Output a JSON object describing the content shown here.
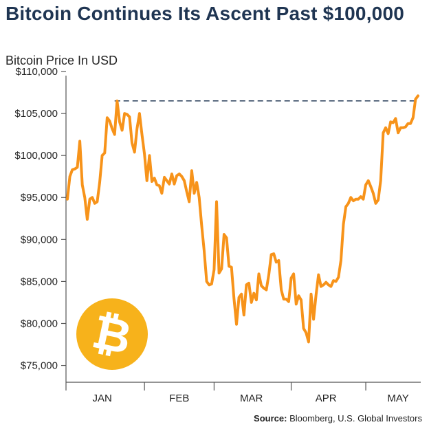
{
  "title": "Bitcoin Continues Its Ascent Past $100,000",
  "subtitle": "Bitcoin Price In USD",
  "source": {
    "label": "Source:",
    "text": "Bloomberg, U.S. Global Investors"
  },
  "logo": {
    "icon": "bitcoin-icon",
    "glyph": "₿",
    "color": "#f7b21b"
  },
  "colors": {
    "line": "#f7931a",
    "reference_line": "#1f3552",
    "axis": "#555555"
  },
  "chart_data": {
    "type": "line",
    "title": "Bitcoin Continues Its Ascent Past $100,000",
    "subtitle": "Bitcoin Price In USD",
    "xlabel": "",
    "ylabel": "",
    "x_tick_labels": [
      "JAN",
      "FEB",
      "MAR",
      "APR",
      "MAY"
    ],
    "y_tick_labels": [
      "$75,000",
      "$80,000",
      "$85,000",
      "$90,000",
      "$95,000",
      "$100,000",
      "$105,000",
      "$110,000"
    ],
    "y_ticks": [
      75000,
      80000,
      85000,
      90000,
      95000,
      100000,
      105000,
      110000
    ],
    "ylim": [
      73000,
      110000
    ],
    "x_range": [
      "2025-01-01",
      "2025-05-22"
    ],
    "grid": false,
    "legend": "none",
    "reference_line": {
      "y": 106500,
      "style": "dashed",
      "from": "2025-01-20",
      "to": "2025-05-22"
    },
    "series": [
      {
        "color": "#f7931a",
        "x": [
          "2025-01-01",
          "2025-01-02",
          "2025-01-03",
          "2025-01-04",
          "2025-01-05",
          "2025-01-06",
          "2025-01-07",
          "2025-01-08",
          "2025-01-09",
          "2025-01-10",
          "2025-01-11",
          "2025-01-12",
          "2025-01-13",
          "2025-01-14",
          "2025-01-15",
          "2025-01-16",
          "2025-01-17",
          "2025-01-18",
          "2025-01-19",
          "2025-01-20",
          "2025-01-21",
          "2025-01-22",
          "2025-01-23",
          "2025-01-24",
          "2025-01-25",
          "2025-01-26",
          "2025-01-27",
          "2025-01-28",
          "2025-01-29",
          "2025-01-30",
          "2025-01-31",
          "2025-02-01",
          "2025-02-02",
          "2025-02-03",
          "2025-02-04",
          "2025-02-05",
          "2025-02-06",
          "2025-02-07",
          "2025-02-08",
          "2025-02-09",
          "2025-02-10",
          "2025-02-11",
          "2025-02-12",
          "2025-02-13",
          "2025-02-14",
          "2025-02-15",
          "2025-02-16",
          "2025-02-17",
          "2025-02-18",
          "2025-02-19",
          "2025-02-20",
          "2025-02-21",
          "2025-02-22",
          "2025-02-23",
          "2025-02-24",
          "2025-02-25",
          "2025-02-26",
          "2025-02-27",
          "2025-02-28",
          "2025-03-01",
          "2025-03-02",
          "2025-03-03",
          "2025-03-04",
          "2025-03-05",
          "2025-03-06",
          "2025-03-07",
          "2025-03-08",
          "2025-03-09",
          "2025-03-10",
          "2025-03-11",
          "2025-03-12",
          "2025-03-13",
          "2025-03-14",
          "2025-03-15",
          "2025-03-16",
          "2025-03-17",
          "2025-03-18",
          "2025-03-19",
          "2025-03-20",
          "2025-03-21",
          "2025-03-22",
          "2025-03-23",
          "2025-03-24",
          "2025-03-25",
          "2025-03-26",
          "2025-03-27",
          "2025-03-28",
          "2025-03-29",
          "2025-03-30",
          "2025-03-31",
          "2025-04-01",
          "2025-04-02",
          "2025-04-03",
          "2025-04-04",
          "2025-04-05",
          "2025-04-06",
          "2025-04-07",
          "2025-04-08",
          "2025-04-09",
          "2025-04-10",
          "2025-04-11",
          "2025-04-12",
          "2025-04-13",
          "2025-04-14",
          "2025-04-15",
          "2025-04-16",
          "2025-04-17",
          "2025-04-18",
          "2025-04-19",
          "2025-04-20",
          "2025-04-21",
          "2025-04-22",
          "2025-04-23",
          "2025-04-24",
          "2025-04-25",
          "2025-04-26",
          "2025-04-27",
          "2025-04-28",
          "2025-04-29",
          "2025-04-30",
          "2025-05-01",
          "2025-05-02",
          "2025-05-03",
          "2025-05-04",
          "2025-05-05",
          "2025-05-06",
          "2025-05-07",
          "2025-05-08",
          "2025-05-09",
          "2025-05-10",
          "2025-05-11",
          "2025-05-12",
          "2025-05-13",
          "2025-05-14",
          "2025-05-15",
          "2025-05-16",
          "2025-05-17",
          "2025-05-18",
          "2025-05-19",
          "2025-05-20",
          "2025-05-21",
          "2025-05-22"
        ],
        "y": [
          94800,
          97500,
          98300,
          98400,
          98600,
          101700,
          96500,
          95000,
          92400,
          94800,
          95000,
          94300,
          94500,
          96800,
          100000,
          100300,
          104500,
          104100,
          103200,
          102500,
          106500,
          104000,
          103000,
          105000,
          104900,
          104600,
          101500,
          100400,
          103200,
          105000,
          102500,
          100200,
          97000,
          100000,
          96900,
          97300,
          96500,
          96400,
          95500,
          97400,
          97000,
          96600,
          97800,
          96600,
          97600,
          97800,
          97500,
          97000,
          95700,
          94500,
          98200,
          95500,
          96800,
          95000,
          91700,
          88700,
          85000,
          84600,
          84700,
          86400,
          94500,
          86000,
          86500,
          90600,
          90200,
          86800,
          86700,
          83000,
          79900,
          83100,
          83500,
          81000,
          84600,
          84800,
          82500,
          83600,
          82800,
          85900,
          84500,
          84200,
          84000,
          85800,
          88200,
          88300,
          87300,
          87500,
          84000,
          82900,
          82900,
          82600,
          85400,
          85900,
          82300,
          83300,
          82800,
          79400,
          78900,
          77800,
          83500,
          80500,
          83400,
          85800,
          84400,
          84600,
          84900,
          84600,
          84400,
          85100,
          85000,
          85500,
          87500,
          91800,
          93900,
          94300,
          95000,
          94600,
          94800,
          94800,
          95100,
          94800,
          96500,
          97000,
          96300,
          95500,
          94300,
          94700,
          97000,
          102700,
          103300,
          102600,
          104000,
          103900,
          104400,
          102700,
          103300,
          103300,
          103400,
          103800,
          103800,
          104500,
          106700,
          107100
        ],
        "dates_as_shown": true
      }
    ]
  }
}
